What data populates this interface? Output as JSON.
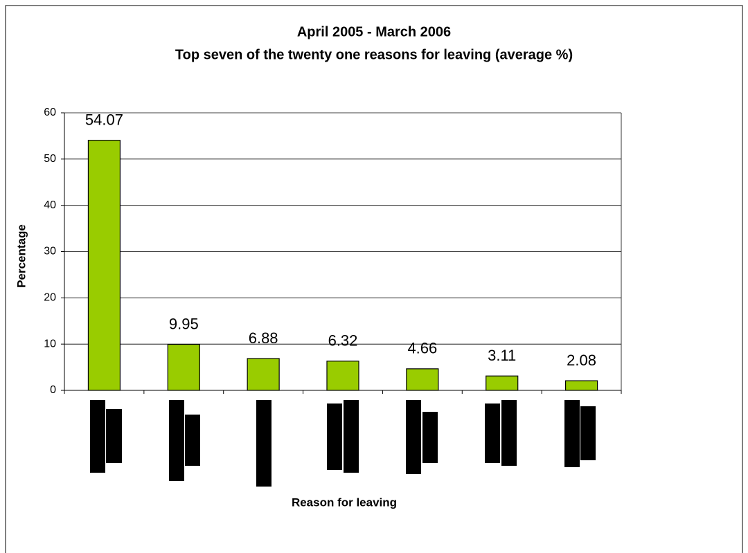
{
  "chart_data": {
    "type": "bar",
    "title": "April 2005 - March 2006",
    "subtitle": "Top seven of the twenty one reasons for leaving (average %)",
    "x_label": "Reason for leaving",
    "y_label": "Percentage",
    "categories": [
      null,
      null,
      null,
      null,
      null,
      null,
      null
    ],
    "values": [
      54.07,
      9.95,
      6.88,
      6.32,
      4.66,
      3.11,
      2.08
    ],
    "color": "#99cc00",
    "ylim": [
      0,
      60
    ],
    "yticks": [
      0,
      10,
      20,
      30,
      40,
      50,
      60
    ],
    "grid": true
  }
}
